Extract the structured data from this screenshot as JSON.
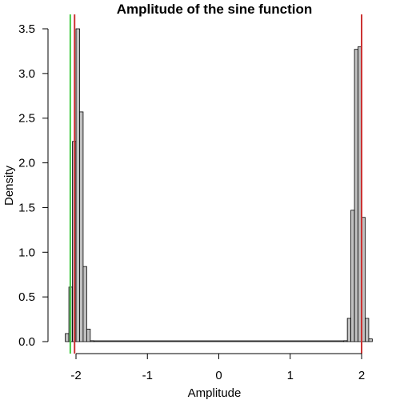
{
  "chart_data": {
    "type": "bar",
    "title": "Amplitude of the sine function",
    "xlabel": "Amplitude",
    "ylabel": "Density",
    "xlim": [
      -2.2,
      2.1
    ],
    "ylim": [
      0,
      3.5
    ],
    "xticks": [
      -2,
      -1,
      0,
      1,
      2
    ],
    "yticks": [
      0.0,
      0.5,
      1.0,
      1.5,
      2.0,
      2.5,
      3.0,
      3.5
    ],
    "bin_width": 0.05,
    "bins": [
      {
        "x0": -2.15,
        "value": 0.09
      },
      {
        "x0": -2.1,
        "value": 0.61
      },
      {
        "x0": -2.05,
        "value": 2.24
      },
      {
        "x0": -2.0,
        "value": 3.5
      },
      {
        "x0": -1.95,
        "value": 2.57
      },
      {
        "x0": -1.9,
        "value": 0.84
      },
      {
        "x0": -1.85,
        "value": 0.14
      },
      {
        "x0": -1.8,
        "value": 0.01
      },
      {
        "x0": 1.75,
        "value": 0.01
      },
      {
        "x0": 1.8,
        "value": 0.26
      },
      {
        "x0": 1.85,
        "value": 1.47
      },
      {
        "x0": 1.9,
        "value": 3.27
      },
      {
        "x0": 1.95,
        "value": 3.3
      },
      {
        "x0": 2.0,
        "value": 1.39
      },
      {
        "x0": 2.05,
        "value": 0.26
      },
      {
        "x0": 2.1,
        "value": 0.03
      }
    ],
    "flat_range": [
      -1.75,
      1.75
    ],
    "vlines": [
      {
        "x": -2.08,
        "color": "#44cc44"
      },
      {
        "x": -2.02,
        "color": "#cc3333"
      },
      {
        "x": 2.0,
        "color": "#cc3333"
      }
    ],
    "bar_fill": "#c0c0c0",
    "bar_stroke": "#000000"
  }
}
